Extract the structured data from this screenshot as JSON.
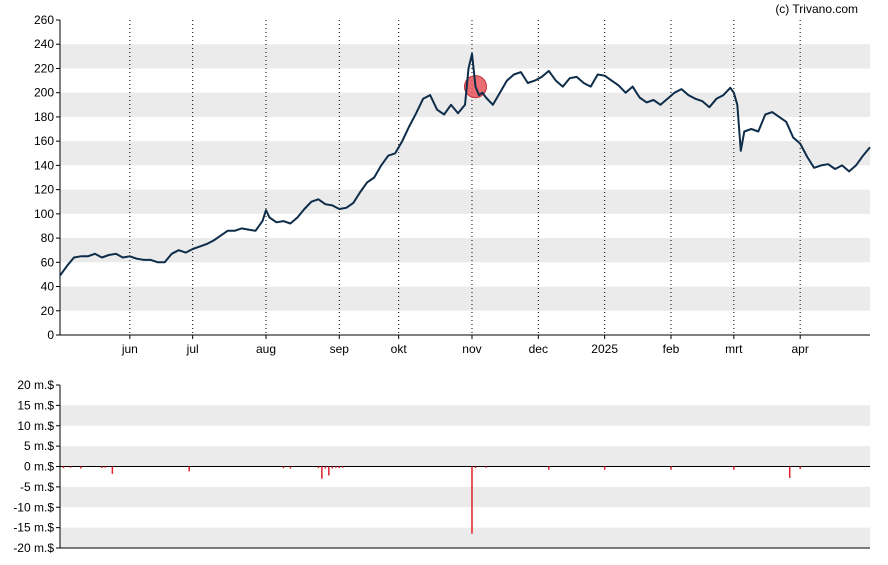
{
  "credit": "(c) Trivano.com",
  "colors": {
    "price_line": "#0d2d4a",
    "band": "#ebebeb",
    "volume_bar": "#e0202a",
    "highlight_fill": "#e8545c",
    "axis": "#000000",
    "grid_vertical": "#000000"
  },
  "chart_data": [
    {
      "type": "line",
      "name": "price",
      "ylim": [
        0,
        260
      ],
      "yticks": [
        0,
        20,
        40,
        60,
        80,
        100,
        120,
        140,
        160,
        180,
        200,
        220,
        240,
        260
      ],
      "ytick_labels": [
        "0",
        "20",
        "40",
        "60",
        "80",
        "100",
        "120",
        "140",
        "160",
        "180",
        "200",
        "220",
        "240",
        "260"
      ],
      "xlim": [
        0,
        232
      ],
      "xticks": [
        20,
        38,
        59,
        80,
        97,
        118,
        137,
        156,
        175,
        193,
        212
      ],
      "xtick_labels": [
        "jun",
        "jul",
        "aug",
        "sep",
        "okt",
        "nov",
        "dec",
        "2025",
        "feb",
        "mrt",
        "apr"
      ],
      "grid": "alternating horizontal bands, dotted vertical lines at month ticks",
      "x": [
        0,
        2,
        4,
        6,
        8,
        10,
        12,
        14,
        16,
        18,
        20,
        22,
        24,
        26,
        28,
        30,
        32,
        34,
        36,
        38,
        40,
        42,
        44,
        46,
        48,
        50,
        52,
        54,
        56,
        58,
        59,
        60,
        62,
        64,
        66,
        68,
        70,
        72,
        74,
        76,
        78,
        80,
        82,
        84,
        86,
        88,
        90,
        92,
        94,
        96,
        97,
        98,
        100,
        102,
        104,
        106,
        108,
        110,
        112,
        114,
        116,
        117,
        118,
        119,
        120,
        121,
        122,
        124,
        126,
        128,
        130,
        132,
        134,
        136,
        138,
        140,
        142,
        144,
        146,
        148,
        150,
        152,
        154,
        156,
        158,
        160,
        162,
        164,
        166,
        168,
        170,
        172,
        174,
        176,
        178,
        180,
        182,
        184,
        186,
        188,
        190,
        192,
        193,
        194,
        195,
        196,
        198,
        200,
        202,
        204,
        206,
        208,
        210,
        212,
        214,
        216,
        218,
        220,
        222,
        224,
        226,
        228,
        230,
        232
      ],
      "y": [
        49,
        57,
        64,
        65,
        65,
        67,
        64,
        66,
        67,
        64,
        65,
        63,
        62,
        62,
        60,
        60,
        67,
        70,
        68,
        71,
        73,
        75,
        78,
        82,
        86,
        86,
        88,
        87,
        86,
        94,
        103,
        97,
        93,
        94,
        92,
        97,
        104,
        110,
        112,
        108,
        107,
        104,
        105,
        109,
        118,
        126,
        130,
        140,
        148,
        150,
        155,
        160,
        172,
        183,
        195,
        198,
        186,
        182,
        190,
        183,
        190,
        220,
        232,
        205,
        198,
        200,
        196,
        190,
        200,
        210,
        215,
        217,
        208,
        210,
        213,
        218,
        210,
        205,
        212,
        213,
        208,
        205,
        215,
        214,
        210,
        206,
        200,
        205,
        196,
        192,
        194,
        190,
        195,
        200,
        203,
        198,
        195,
        193,
        188,
        195,
        198,
        204,
        200,
        190,
        152,
        168,
        170,
        168,
        182,
        184,
        180,
        176,
        163,
        158,
        147,
        138,
        140,
        141,
        137,
        140,
        135,
        140,
        148,
        155
      ]
    },
    {
      "type": "bar",
      "name": "volume",
      "ylim": [
        -20,
        20
      ],
      "yticks": [
        -20,
        -15,
        -10,
        -5,
        0,
        5,
        10,
        15,
        20
      ],
      "ytick_labels": [
        "-20 m.$",
        "-15 m.$",
        "-10 m.$",
        "-5 m.$",
        "0 m.$",
        "5 m.$",
        "10 m.$",
        "15 m.$",
        "20 m.$"
      ],
      "xlim": [
        0,
        232
      ],
      "x": [
        1,
        3,
        6,
        12,
        13,
        15,
        37,
        64,
        66,
        74,
        75,
        76,
        77,
        78,
        79,
        80,
        81,
        118,
        119,
        122,
        140,
        156,
        175,
        193,
        209,
        212
      ],
      "values": [
        -0.4,
        -0.3,
        -0.5,
        -0.4,
        -0.3,
        -1.8,
        -1.2,
        -0.4,
        -0.5,
        -0.4,
        -3.0,
        -0.5,
        -2.2,
        -0.5,
        -0.3,
        -0.4,
        -0.3,
        -16.5,
        -0.4,
        -0.3,
        -0.8,
        -0.8,
        -0.8,
        -0.8,
        -2.8,
        -0.6
      ]
    }
  ]
}
